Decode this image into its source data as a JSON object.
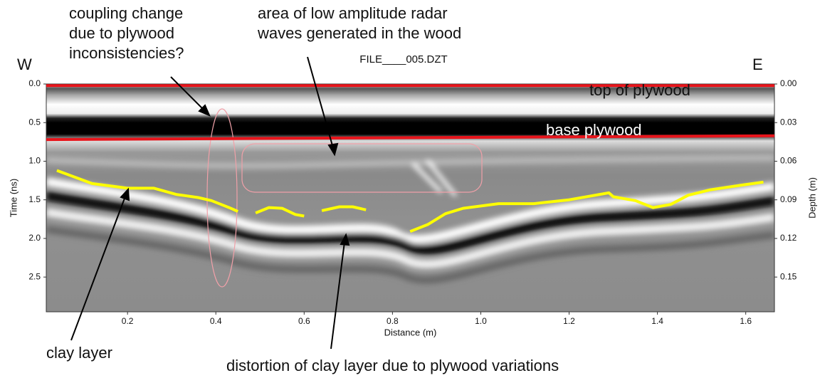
{
  "chart_data": {
    "type": "radargram",
    "title": "FILE____005.DZT",
    "x_label": "Distance (m)",
    "y_label": "Time (ns)",
    "y2_label": "Depth (m)",
    "xlim": [
      0.016,
      1.665
    ],
    "ylim": [
      2.95,
      0
    ],
    "y2lim": [
      0.177,
      0
    ],
    "xticks": [
      0.2,
      0.4,
      0.6,
      0.8,
      {
        "value": 1.0,
        "label": "1.0"
      },
      1.2,
      1.4,
      1.6
    ],
    "yticks": [
      {
        "value": 0,
        "label": "0.0"
      },
      0.5,
      {
        "value": 1.0,
        "label": "1.0"
      },
      1.5,
      {
        "value": 2.0,
        "label": "2.0"
      },
      2.5
    ],
    "y2ticks": [
      {
        "value": 0,
        "label": "0.00"
      },
      {
        "value": 0.03,
        "label": "0.03"
      },
      {
        "value": 0.06,
        "label": "0.06"
      },
      {
        "value": 0.09,
        "label": "0.09"
      },
      {
        "value": 0.12,
        "label": "0.12"
      },
      {
        "value": 0.15,
        "label": "0.15"
      }
    ],
    "series": [
      {
        "name": "top of plywood",
        "color": "#e8141b",
        "x": [
          0.016,
          1.665
        ],
        "values": [
          0.02,
          0.02
        ]
      },
      {
        "name": "base plywood",
        "color": "#e8141b",
        "x": [
          0.016,
          1.665
        ],
        "values": [
          0.72,
          0.67
        ]
      },
      {
        "name": "clay layer",
        "color": "#ffff00",
        "x": [
          0.04,
          0.12,
          0.2,
          0.26,
          0.31,
          0.36,
          0.39,
          0.43,
          0.45,
          0.47,
          0.49,
          0.52,
          0.55,
          0.58,
          0.6,
          0.62,
          0.64,
          0.68,
          0.71,
          0.74,
          0.8,
          0.84,
          0.88,
          0.92,
          0.96,
          1.04,
          1.12,
          1.2,
          1.29,
          1.3,
          1.35,
          1.39,
          1.43,
          1.47,
          1.52,
          1.59,
          1.64
        ],
        "values": [
          1.12,
          1.29,
          1.35,
          1.35,
          1.43,
          1.47,
          1.51,
          1.6,
          1.65,
          null,
          1.67,
          1.6,
          1.61,
          1.69,
          1.71,
          null,
          1.64,
          1.59,
          1.59,
          1.63,
          null,
          1.91,
          1.82,
          1.68,
          1.61,
          1.55,
          1.55,
          1.5,
          1.41,
          1.46,
          1.51,
          1.6,
          1.56,
          1.44,
          1.37,
          1.31,
          1.27
        ]
      }
    ],
    "annotations": {
      "west": "W",
      "east": "E",
      "coupling": [
        "coupling change",
        "due to plywood",
        "inconsistencies?"
      ],
      "low_amplitude": [
        "area of low amplitude radar",
        "waves generated in the wood"
      ],
      "distortion": "distortion of clay layer due to plywood variations"
    }
  }
}
